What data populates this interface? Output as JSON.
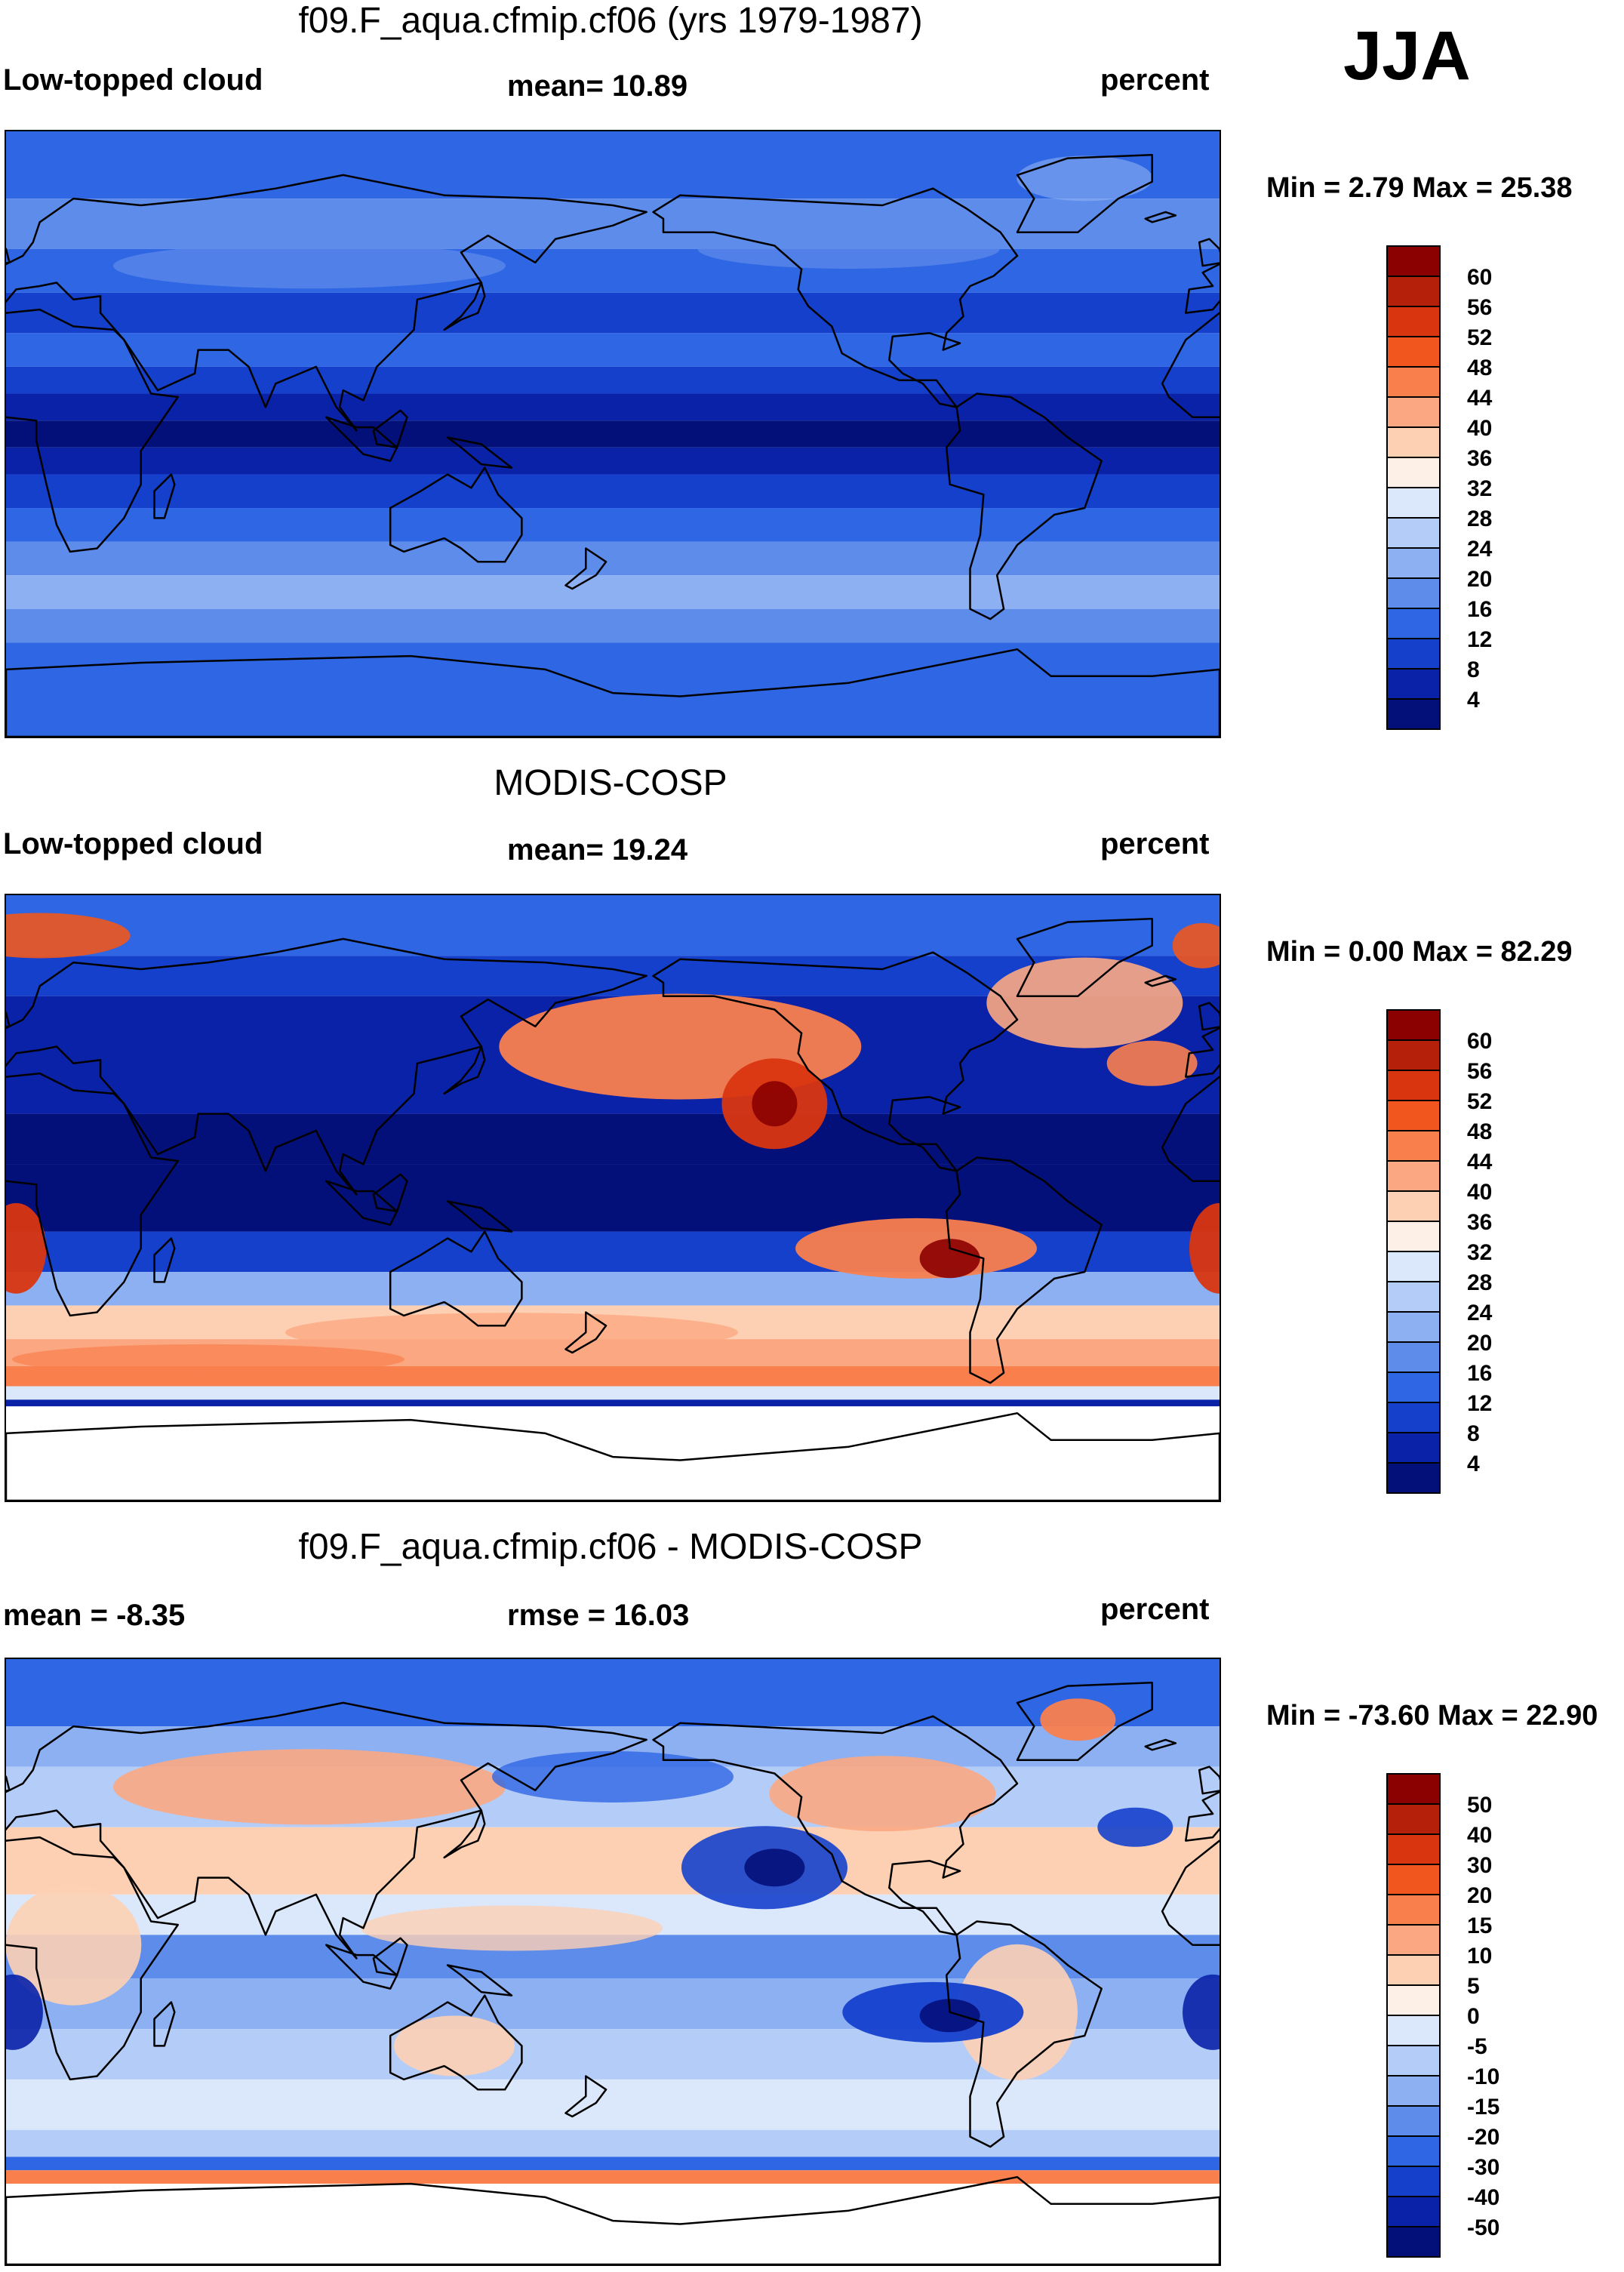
{
  "season": "JJA",
  "panels": [
    {
      "id": "model",
      "title": "f09.F_aqua.cfmip.cf06 (yrs 1979-1987)",
      "left_label": "Low-topped cloud",
      "center_label": "mean=  10.89",
      "right_label": "percent",
      "minmax": "Min =   2.79 Max =  25.38",
      "colorbar": {
        "ticks": [
          "60",
          "56",
          "52",
          "48",
          "44",
          "40",
          "36",
          "32",
          "28",
          "24",
          "20",
          "16",
          "12",
          "8",
          "4"
        ],
        "colors": [
          "#8b0000",
          "#b5200a",
          "#d93610",
          "#f0561d",
          "#f97f4d",
          "#fba882",
          "#fdd0b4",
          "#fdf0e6",
          "#dbe8fb",
          "#b4cdf8",
          "#8db0f2",
          "#5e8cea",
          "#2f66e3",
          "#1540cc",
          "#0a22a8",
          "#04107a"
        ]
      },
      "field_description_colors": {
        "tropics": "#0c1f9e",
        "subtropics": "#1a49d9",
        "midlat": "#5c8ce8",
        "polar": "#2e63df"
      }
    },
    {
      "id": "obs",
      "title": "MODIS-COSP",
      "left_label": "Low-topped cloud",
      "center_label": "mean=  19.24",
      "right_label": "percent",
      "minmax": "Min =   0.00 Max =  82.29",
      "colorbar": {
        "ticks": [
          "60",
          "56",
          "52",
          "48",
          "44",
          "40",
          "36",
          "32",
          "28",
          "24",
          "20",
          "16",
          "12",
          "8",
          "4"
        ],
        "colors": [
          "#8b0000",
          "#b5200a",
          "#d93610",
          "#f0561d",
          "#f97f4d",
          "#fba882",
          "#fdd0b4",
          "#fdf0e6",
          "#dbe8fb",
          "#b4cdf8",
          "#8db0f2",
          "#5e8cea",
          "#2f66e3",
          "#1540cc",
          "#0a22a8",
          "#04107a"
        ]
      }
    },
    {
      "id": "diff",
      "title": "f09.F_aqua.cfmip.cf06 - MODIS-COSP",
      "left_label": "mean =  -8.35",
      "center_label": "rmse =  16.03",
      "right_label": "percent",
      "minmax": "Min = -73.60 Max =  22.90",
      "colorbar": {
        "ticks": [
          "50",
          "40",
          "30",
          "20",
          "15",
          "10",
          "5",
          "0",
          "-5",
          "-10",
          "-15",
          "-20",
          "-30",
          "-40",
          "-50"
        ],
        "colors": [
          "#8b0000",
          "#b5200a",
          "#d93610",
          "#f0561d",
          "#f97f4d",
          "#fba882",
          "#fdd0b4",
          "#fdf0e6",
          "#dbe8fb",
          "#b4cdf8",
          "#8db0f2",
          "#5e8cea",
          "#2f66e3",
          "#1540cc",
          "#0a22a8",
          "#04107a"
        ]
      }
    }
  ]
}
